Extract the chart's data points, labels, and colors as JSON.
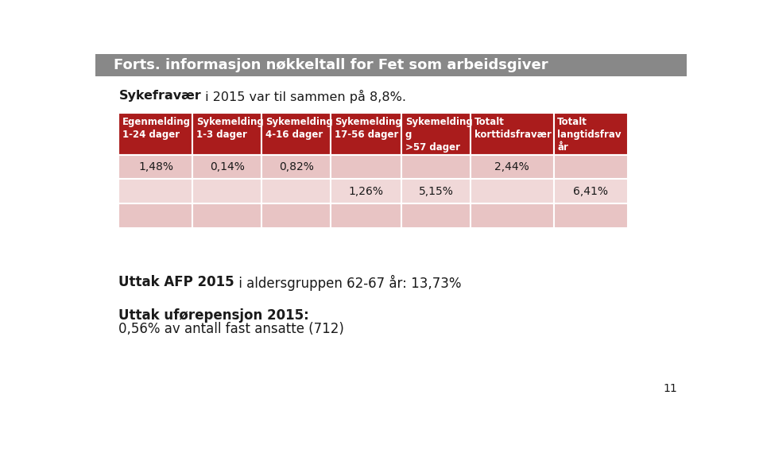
{
  "title": "Forts. informasjon nøkkeltall for Fet som arbeidsgiver",
  "title_bg_color": "#888888",
  "title_text_color": "#ffffff",
  "subtitle_bold": "Sykefravær",
  "subtitle_rest": " i 2015 var til sammen på 8,8%.",
  "table_headers": [
    "Egenmelding\n1-24 dager",
    "Sykemelding\n1-3 dager",
    "Sykemelding\n4-16 dager",
    "Sykemelding\n17-56 dager",
    "Sykemelding\ng\n>57 dager",
    "Totalt\nkorttidsfravær",
    "Totalt\nlangtidsfrav\når"
  ],
  "header_bg_color": "#aa1c1c",
  "header_text_color": "#ffffff",
  "row1_values": [
    "1,48%",
    "0,14%",
    "0,82%",
    "",
    "",
    "2,44%",
    ""
  ],
  "row2_values": [
    "",
    "",
    "",
    "1,26%",
    "5,15%",
    "",
    "6,41%"
  ],
  "row3_values": [
    "",
    "",
    "",
    "",
    "",
    "",
    ""
  ],
  "row_bg_1": "#e8c4c4",
  "row_bg_2": "#f0d8d8",
  "row_bg_3": "#e8c4c4",
  "bottom_text1_bold": "Uttak AFP 2015",
  "bottom_text1_rest": " i aldersgruppen 62-67 år: 13,73%",
  "bottom_text2_bold": "Uttak uførepensjon 2015:",
  "bottom_text2_rest": "0,56% av antall fast ansatte (712)",
  "page_number": "11",
  "bg_color": "#ffffff",
  "text_color": "#1a1a1a"
}
